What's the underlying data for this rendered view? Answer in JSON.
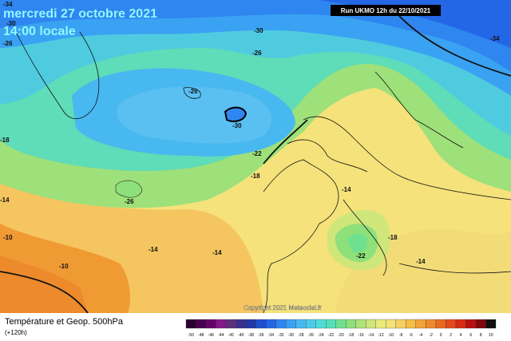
{
  "header": {
    "date": "mercredi 27 octobre 2021",
    "time": "14:00 locale",
    "run": "Run UKMO 12h du 22/10/2021"
  },
  "map": {
    "contour_labels": [
      "-34",
      "-30",
      "-26",
      "-30",
      "-26",
      "-34",
      "-26",
      "-30",
      "-22",
      "-18",
      "-18",
      "-26",
      "-14",
      "-10",
      "-10",
      "-14",
      "-14",
      "-14",
      "-18",
      "-22",
      "-14"
    ],
    "copyright": "Copyright 2021 Meteociel.fr"
  },
  "footer": {
    "title": "Température et Geop. 500hPa",
    "lead": "(+120h)"
  },
  "legend": {
    "values": [
      -50,
      -48,
      -46,
      -44,
      -42,
      -40,
      -38,
      -36,
      -34,
      -32,
      -30,
      -28,
      -26,
      -24,
      -22,
      -20,
      -18,
      -16,
      -14,
      -12,
      -10,
      -8,
      -6,
      -4,
      -2,
      0,
      2,
      4,
      6,
      8,
      10
    ],
    "colors": [
      "#2b0033",
      "#4a0052",
      "#66006b",
      "#82188a",
      "#5c2f7a",
      "#3a2f8f",
      "#2238a8",
      "#1f4fd0",
      "#2366e6",
      "#2f86f0",
      "#3aa2f2",
      "#48b8f0",
      "#4fcbe8",
      "#4fdcd8",
      "#55e0b8",
      "#6fe08f",
      "#8ee07a",
      "#aee27a",
      "#cfe67a",
      "#e8ea7a",
      "#f5e27a",
      "#f5d060",
      "#f5bc48",
      "#f2a23a",
      "#ee8a2e",
      "#e86a22",
      "#e24a1a",
      "#d82a14",
      "#b8100e",
      "#80080a",
      "#101010"
    ]
  }
}
